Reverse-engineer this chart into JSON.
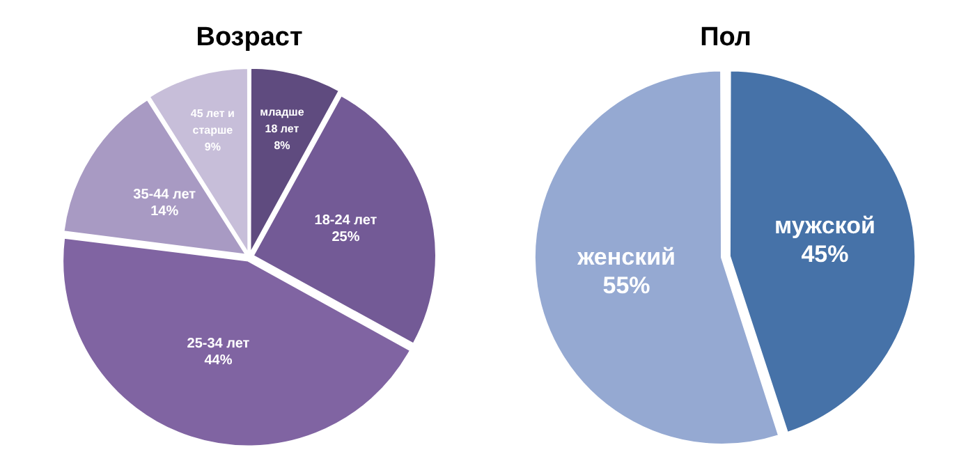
{
  "chart_data": [
    {
      "type": "pie",
      "title": "Возраст",
      "categories": [
        "младше 18 лет",
        "18-24 лет",
        "25-34 лет",
        "35-44 лет",
        "45 лет и старше"
      ],
      "values": [
        8,
        25,
        44,
        14,
        9
      ],
      "value_labels": [
        "8%",
        "25%",
        "44%",
        "14%",
        "9%"
      ],
      "colors": [
        "#5f4b7f",
        "#735a96",
        "#8064a2",
        "#a89ac3",
        "#c7bed9"
      ]
    },
    {
      "type": "pie",
      "title": "Пол",
      "categories": [
        "мужской",
        "женский"
      ],
      "values": [
        45,
        55
      ],
      "value_labels": [
        "45%",
        "55%"
      ],
      "colors": [
        "#4672a8",
        "#95a9d2"
      ]
    }
  ]
}
